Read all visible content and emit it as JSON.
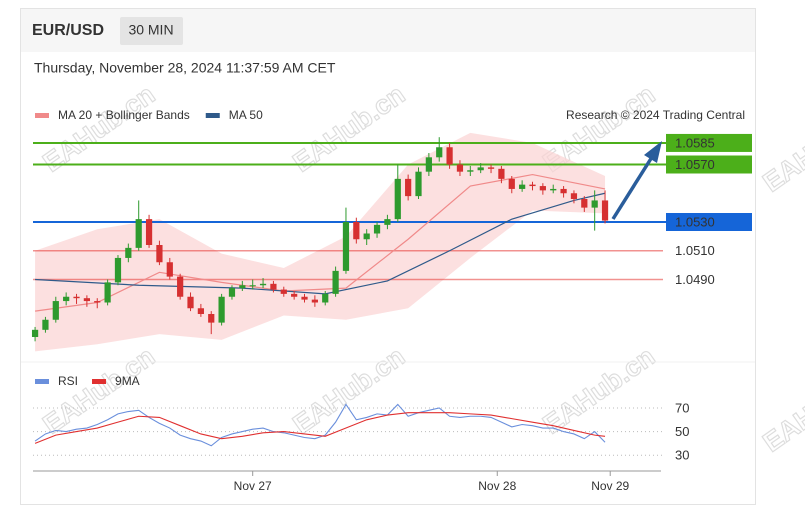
{
  "header": {
    "symbol": "EUR/USD",
    "timeframe": "30 MIN",
    "datetime": "Thursday, November 28, 2024 11:37:59 AM CET"
  },
  "watermark": "EAHub.cn",
  "chart_data": [
    {
      "type": "candlestick",
      "credit": "Research © 2024 Trading Central",
      "up_color": "#2e9a2e",
      "down_color": "#d63031",
      "xlim": [
        -0.2,
        60.4
      ],
      "ylim": [
        1.0434,
        1.0594
      ],
      "candles": [
        [
          1.045,
          1.0457,
          1.0447,
          1.0455
        ],
        [
          1.0455,
          1.0464,
          1.0453,
          1.0462
        ],
        [
          1.0462,
          1.0478,
          1.046,
          1.0475
        ],
        [
          1.0475,
          1.0481,
          1.0472,
          1.0478
        ],
        [
          1.0478,
          1.048,
          1.0473,
          1.0477
        ],
        [
          1.0477,
          1.0479,
          1.0471,
          1.0475
        ],
        [
          1.0475,
          1.0477,
          1.047,
          1.0474
        ],
        [
          1.0474,
          1.049,
          1.0472,
          1.0488
        ],
        [
          1.0488,
          1.0507,
          1.0486,
          1.0505
        ],
        [
          1.0505,
          1.0515,
          1.0502,
          1.0512
        ],
        [
          1.0512,
          1.0545,
          1.051,
          1.0532
        ],
        [
          1.0532,
          1.0535,
          1.0512,
          1.0514
        ],
        [
          1.0514,
          1.0517,
          1.05,
          1.0502
        ],
        [
          1.0502,
          1.0505,
          1.049,
          1.0492
        ],
        [
          1.0492,
          1.0494,
          1.0476,
          1.0478
        ],
        [
          1.0478,
          1.0481,
          1.0468,
          1.047
        ],
        [
          1.047,
          1.0473,
          1.0464,
          1.0466
        ],
        [
          1.0466,
          1.0468,
          1.0452,
          1.046
        ],
        [
          1.046,
          1.048,
          1.0458,
          1.0478
        ],
        [
          1.0478,
          1.0486,
          1.0476,
          1.0484
        ],
        [
          1.0484,
          1.0489,
          1.0482,
          1.0486
        ],
        [
          1.0486,
          1.049,
          1.0483,
          1.0486
        ],
        [
          1.0486,
          1.0491,
          1.0484,
          1.0487
        ],
        [
          1.0487,
          1.0489,
          1.0481,
          1.0483
        ],
        [
          1.0483,
          1.0485,
          1.0478,
          1.048
        ],
        [
          1.048,
          1.0482,
          1.0476,
          1.0478
        ],
        [
          1.0478,
          1.048,
          1.0474,
          1.0476
        ],
        [
          1.0476,
          1.0479,
          1.0471,
          1.0474
        ],
        [
          1.0474,
          1.0482,
          1.0472,
          1.048
        ],
        [
          1.048,
          1.0499,
          1.0478,
          1.0496
        ],
        [
          1.0496,
          1.054,
          1.0494,
          1.053
        ],
        [
          1.053,
          1.0533,
          1.0515,
          1.0518
        ],
        [
          1.0518,
          1.0525,
          1.0514,
          1.0522
        ],
        [
          1.0522,
          1.053,
          1.0519,
          1.0528
        ],
        [
          1.0528,
          1.0535,
          1.0525,
          1.0532
        ],
        [
          1.0532,
          1.057,
          1.053,
          1.056
        ],
        [
          1.056,
          1.0563,
          1.0545,
          1.0548
        ],
        [
          1.0548,
          1.0568,
          1.0546,
          1.0565
        ],
        [
          1.0565,
          1.0578,
          1.0562,
          1.0575
        ],
        [
          1.0575,
          1.0589,
          1.0572,
          1.0582
        ],
        [
          1.0582,
          1.0585,
          1.0567,
          1.057
        ],
        [
          1.057,
          1.0573,
          1.0562,
          1.0565
        ],
        [
          1.0565,
          1.0569,
          1.0562,
          1.0566
        ],
        [
          1.0566,
          1.0571,
          1.0564,
          1.0568
        ],
        [
          1.0568,
          1.057,
          1.0564,
          1.0567
        ],
        [
          1.0567,
          1.0569,
          1.0557,
          1.056
        ],
        [
          1.056,
          1.0562,
          1.055,
          1.0553
        ],
        [
          1.0553,
          1.0559,
          1.0551,
          1.0556
        ],
        [
          1.0556,
          1.0558,
          1.0552,
          1.0555
        ],
        [
          1.0555,
          1.0557,
          1.0549,
          1.0552
        ],
        [
          1.0552,
          1.0556,
          1.055,
          1.0553
        ],
        [
          1.0553,
          1.0555,
          1.0547,
          1.055
        ],
        [
          1.055,
          1.0552,
          1.0543,
          1.0546
        ],
        [
          1.0546,
          1.0548,
          1.0537,
          1.054
        ],
        [
          1.054,
          1.0552,
          1.0524,
          1.0545
        ],
        [
          1.0545,
          1.0552,
          1.0529,
          1.0531
        ]
      ],
      "overlays": [
        {
          "name": "MA 20 + Bollinger Bands",
          "color": "#f08a8a",
          "band_color": "#fbd3d3",
          "x": [
            0,
            6,
            12,
            18,
            24,
            30,
            36,
            42,
            48,
            55
          ],
          "values": [
            1.0468,
            1.0474,
            1.0495,
            1.0488,
            1.0482,
            1.0484,
            1.0518,
            1.0555,
            1.0563,
            1.0553
          ],
          "upper": [
            1.051,
            1.0525,
            1.0532,
            1.0508,
            1.0498,
            1.052,
            1.057,
            1.0592,
            1.0585,
            1.0562
          ],
          "lower": [
            1.044,
            1.0445,
            1.0452,
            1.0448,
            1.0465,
            1.0462,
            1.047,
            1.0505,
            1.0538,
            1.0536
          ]
        },
        {
          "name": "MA 50",
          "color": "#2f5a8a",
          "x": [
            0,
            10,
            20,
            28,
            34,
            40,
            46,
            52,
            55
          ],
          "values": [
            1.049,
            1.0486,
            1.0484,
            1.048,
            1.0489,
            1.051,
            1.0532,
            1.0545,
            1.055
          ]
        }
      ],
      "levels": [
        {
          "value": 1.0585,
          "color": "#4caf1a",
          "style": "box"
        },
        {
          "value": 1.057,
          "label": "1.0570",
          "color": "#4caf1a",
          "style": "box"
        },
        {
          "value": 1.053,
          "label": "1.0530",
          "color": "#1565d8",
          "style": "box"
        },
        {
          "value": 1.051,
          "label": "1.0510",
          "color": "#e53935",
          "style": "text"
        },
        {
          "value": 1.049,
          "label": "1.0490",
          "color": "#e53935",
          "style": "text"
        }
      ]
    },
    {
      "type": "line",
      "xlim": [
        -0.2,
        60.4
      ],
      "ylim": [
        20,
        81
      ],
      "yticks": [
        70,
        50,
        30
      ],
      "xticks": [
        {
          "value": 21,
          "label": "Nov 27"
        },
        {
          "value": 44.6,
          "label": "Nov 28"
        },
        {
          "value": 55.5,
          "label": "Nov 29"
        }
      ],
      "series": [
        {
          "name": "RSI",
          "color": "#6a8fdc",
          "x": [
            0,
            1,
            2,
            3,
            4,
            5,
            6,
            7,
            8,
            9,
            10,
            11,
            12,
            13,
            14,
            15,
            16,
            17,
            18,
            19,
            20,
            21,
            22,
            23,
            24,
            25,
            26,
            27,
            28,
            29,
            30,
            31,
            32,
            33,
            34,
            35,
            36,
            37,
            38,
            39,
            40,
            41,
            42,
            43,
            44,
            45,
            46,
            47,
            48,
            49,
            50,
            51,
            52,
            53,
            54,
            55
          ],
          "values": [
            42,
            48,
            51,
            50,
            52,
            53,
            56,
            60,
            65,
            67,
            68,
            62,
            57,
            53,
            47,
            44,
            42,
            38,
            45,
            48,
            50,
            52,
            53,
            50,
            49,
            47,
            45,
            44,
            47,
            58,
            73,
            60,
            62,
            65,
            64,
            73,
            63,
            66,
            68,
            70,
            63,
            62,
            63,
            63,
            62,
            58,
            54,
            56,
            55,
            53,
            53,
            50,
            48,
            44,
            50,
            41
          ]
        },
        {
          "name": "9MA",
          "color": "#e03030",
          "x": [
            0,
            2,
            4,
            6,
            8,
            10,
            12,
            14,
            16,
            18,
            20,
            22,
            24,
            26,
            28,
            30,
            32,
            34,
            36,
            38,
            40,
            42,
            44,
            46,
            48,
            50,
            52,
            54,
            55
          ],
          "values": [
            40,
            47,
            50,
            53,
            58,
            63,
            62,
            55,
            48,
            44,
            46,
            49,
            50,
            48,
            46,
            53,
            60,
            64,
            66,
            66,
            66,
            65,
            64,
            61,
            58,
            55,
            51,
            47,
            46
          ]
        }
      ]
    }
  ]
}
